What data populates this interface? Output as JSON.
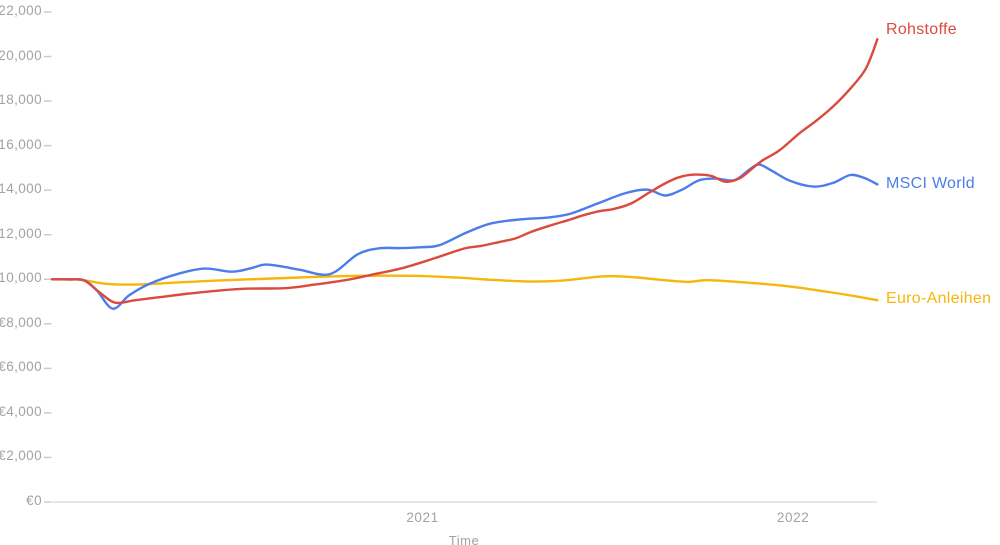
{
  "chart_data": {
    "type": "line",
    "title": "",
    "xlabel": "Time",
    "currency": "EUR",
    "x_axis_note": "months since series start (~Jan 2020); year ticks mark January",
    "ylim": [
      0,
      22000
    ],
    "xlim_months": [
      0,
      26.73
    ],
    "grid": "off",
    "legend_position": "right-end-of-line",
    "axis_color": "#DDDDDF",
    "tick_color": "#CACACC",
    "text_color": "#A2A2A6",
    "x_ticks": [
      {
        "label": "2021",
        "month": 12
      },
      {
        "label": "2022",
        "month": 24
      }
    ],
    "y_ticks": [
      {
        "label": "€0",
        "value": 0
      },
      {
        "label": "€2,000",
        "value": 2000
      },
      {
        "label": "€4,000",
        "value": 4000
      },
      {
        "label": "€6,000",
        "value": 6000
      },
      {
        "label": "€8,000",
        "value": 8000
      },
      {
        "label": "€10,000",
        "value": 10000
      },
      {
        "label": "€12,000",
        "value": 12000
      },
      {
        "label": "€14,000",
        "value": 14000
      },
      {
        "label": "€16,000",
        "value": 16000
      },
      {
        "label": "€18,000",
        "value": 18000
      },
      {
        "label": "€20,000",
        "value": 20000
      },
      {
        "label": "€22,000",
        "value": 22000
      }
    ],
    "series": [
      {
        "name": "Rohstoffe",
        "color": "#DC4A3D",
        "start_value_eur": 10000,
        "end_value_eur": 20780,
        "points": [
          [
            0,
            10000
          ],
          [
            0.55,
            9990
          ],
          [
            1.05,
            9940
          ],
          [
            1.55,
            9400
          ],
          [
            2.05,
            8950
          ],
          [
            2.7,
            9060
          ],
          [
            3.5,
            9200
          ],
          [
            4.45,
            9360
          ],
          [
            5.45,
            9500
          ],
          [
            6.4,
            9580
          ],
          [
            7.55,
            9600
          ],
          [
            8.5,
            9760
          ],
          [
            9.5,
            9960
          ],
          [
            10.45,
            10230
          ],
          [
            11.4,
            10520
          ],
          [
            12.4,
            10950
          ],
          [
            13.35,
            11380
          ],
          [
            13.9,
            11500
          ],
          [
            14.5,
            11680
          ],
          [
            15.0,
            11830
          ],
          [
            15.5,
            12120
          ],
          [
            16.1,
            12400
          ],
          [
            16.7,
            12650
          ],
          [
            17.2,
            12870
          ],
          [
            17.7,
            13050
          ],
          [
            18.2,
            13160
          ],
          [
            18.75,
            13400
          ],
          [
            19.35,
            13900
          ],
          [
            19.85,
            14300
          ],
          [
            20.3,
            14580
          ],
          [
            20.8,
            14700
          ],
          [
            21.35,
            14640
          ],
          [
            21.8,
            14380
          ],
          [
            22.25,
            14520
          ],
          [
            22.65,
            14940
          ],
          [
            23.0,
            15330
          ],
          [
            23.55,
            15780
          ],
          [
            24.2,
            16550
          ],
          [
            24.75,
            17120
          ],
          [
            25.25,
            17700
          ],
          [
            25.8,
            18480
          ],
          [
            26.35,
            19450
          ],
          [
            26.73,
            20780
          ]
        ]
      },
      {
        "name": "MSCI World",
        "color": "#4B7DEB",
        "start_value_eur": 10000,
        "end_value_eur": 14260,
        "points": [
          [
            0,
            10000
          ],
          [
            0.55,
            10000
          ],
          [
            1.05,
            9950
          ],
          [
            1.45,
            9500
          ],
          [
            1.97,
            8680
          ],
          [
            2.5,
            9280
          ],
          [
            3.15,
            9790
          ],
          [
            4.1,
            10250
          ],
          [
            4.95,
            10480
          ],
          [
            5.8,
            10340
          ],
          [
            6.4,
            10480
          ],
          [
            6.9,
            10660
          ],
          [
            7.5,
            10560
          ],
          [
            8.05,
            10420
          ],
          [
            9.0,
            10230
          ],
          [
            9.9,
            11120
          ],
          [
            10.6,
            11390
          ],
          [
            11.3,
            11400
          ],
          [
            11.95,
            11440
          ],
          [
            12.55,
            11530
          ],
          [
            13.4,
            12080
          ],
          [
            14.2,
            12500
          ],
          [
            15.1,
            12680
          ],
          [
            16.1,
            12780
          ],
          [
            16.8,
            12950
          ],
          [
            17.7,
            13420
          ],
          [
            18.6,
            13880
          ],
          [
            19.3,
            14020
          ],
          [
            19.85,
            13760
          ],
          [
            20.4,
            14020
          ],
          [
            20.95,
            14440
          ],
          [
            21.5,
            14520
          ],
          [
            22.1,
            14450
          ],
          [
            22.6,
            14940
          ],
          [
            22.9,
            15150
          ],
          [
            23.3,
            14880
          ],
          [
            23.9,
            14420
          ],
          [
            24.65,
            14160
          ],
          [
            25.3,
            14330
          ],
          [
            25.85,
            14680
          ],
          [
            26.3,
            14550
          ],
          [
            26.73,
            14260
          ]
        ]
      },
      {
        "name": "Euro-Anleihen",
        "color": "#F6B60B",
        "start_value_eur": 10000,
        "end_value_eur": 9060,
        "points": [
          [
            0,
            10000
          ],
          [
            0.9,
            9980
          ],
          [
            1.8,
            9790
          ],
          [
            2.85,
            9770
          ],
          [
            4.1,
            9860
          ],
          [
            5.45,
            9950
          ],
          [
            6.7,
            10010
          ],
          [
            8.0,
            10080
          ],
          [
            9.3,
            10140
          ],
          [
            10.6,
            10160
          ],
          [
            11.9,
            10150
          ],
          [
            13.2,
            10070
          ],
          [
            14.3,
            9970
          ],
          [
            15.45,
            9900
          ],
          [
            16.6,
            9950
          ],
          [
            17.65,
            10110
          ],
          [
            18.2,
            10140
          ],
          [
            18.95,
            10080
          ],
          [
            19.85,
            9960
          ],
          [
            20.6,
            9880
          ],
          [
            21.15,
            9960
          ],
          [
            21.7,
            9930
          ],
          [
            22.5,
            9850
          ],
          [
            23.4,
            9750
          ],
          [
            24.2,
            9620
          ],
          [
            25.15,
            9430
          ],
          [
            26.0,
            9240
          ],
          [
            26.73,
            9060
          ]
        ]
      }
    ]
  }
}
